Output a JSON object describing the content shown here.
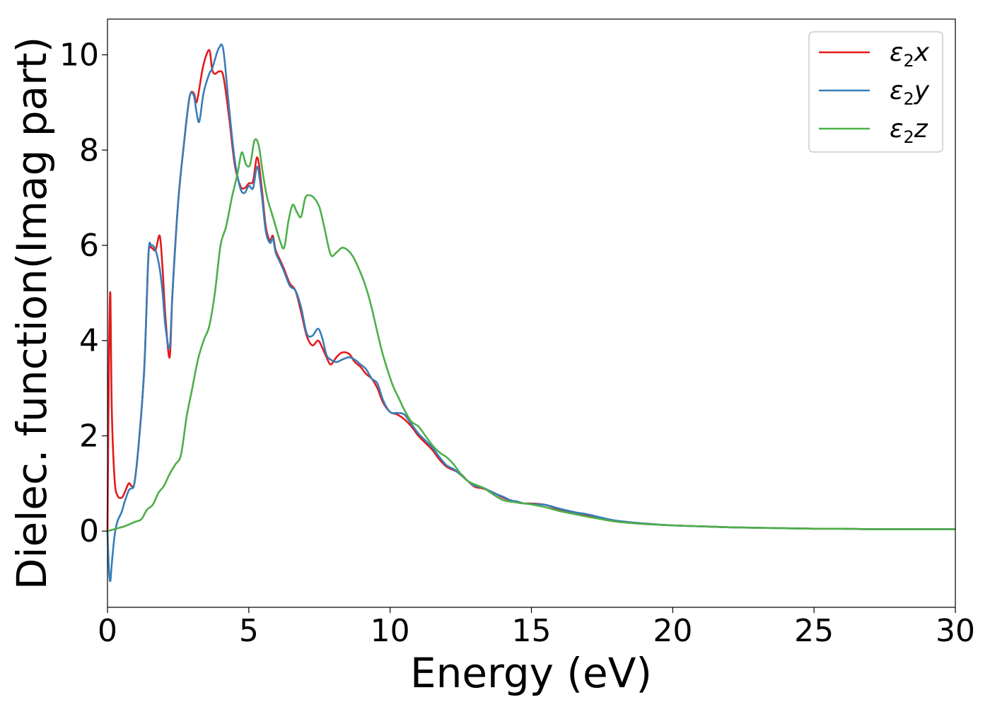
{
  "chart_data": {
    "type": "line",
    "title": "",
    "xlabel": "Energy (eV)",
    "ylabel": "Dielec. function(Imag part)",
    "xlim": [
      0,
      30
    ],
    "ylim": [
      -1.6,
      10.75
    ],
    "xticks": [
      0,
      5,
      10,
      15,
      20,
      25,
      30
    ],
    "yticks": [
      0,
      2,
      4,
      6,
      8,
      10
    ],
    "grid": false,
    "legend_position": "top-right",
    "series": [
      {
        "name": "ε₂x",
        "legend_symbol": "ε",
        "legend_sub": "2",
        "legend_var": "x",
        "color": "#e41a1c",
        "x": [
          0,
          0.05,
          0.1,
          0.15,
          0.25,
          0.35,
          0.5,
          0.6,
          0.75,
          0.85,
          0.95,
          1.1,
          1.3,
          1.45,
          1.55,
          1.7,
          1.85,
          1.95,
          2.05,
          2.2,
          2.3,
          2.5,
          2.7,
          2.9,
          3.05,
          3.15,
          3.25,
          3.4,
          3.6,
          3.7,
          3.8,
          3.95,
          4.1,
          4.3,
          4.5,
          4.7,
          4.85,
          5.0,
          5.15,
          5.3,
          5.45,
          5.6,
          5.75,
          5.85,
          5.95,
          6.1,
          6.25,
          6.45,
          6.65,
          6.85,
          7.05,
          7.25,
          7.45,
          7.6,
          7.75,
          7.9,
          8.1,
          8.3,
          8.55,
          8.75,
          8.95,
          9.15,
          9.35,
          9.55,
          9.75,
          10.0,
          10.25,
          10.5,
          10.75,
          11.0,
          11.25,
          11.5,
          11.75,
          12.0,
          12.25,
          12.5,
          12.75,
          13.0,
          13.25,
          13.5,
          13.75,
          14.0,
          14.25,
          14.5,
          14.75,
          15.0,
          15.5,
          16.0,
          16.5,
          17.0,
          17.5,
          18.0,
          19.0,
          20.0,
          21.0,
          22.0,
          23.0,
          24.0,
          25.0,
          26.0,
          27.0,
          28.0,
          29.0,
          30.0
        ],
        "y": [
          0,
          3.5,
          5.0,
          2.6,
          1.1,
          0.75,
          0.7,
          0.8,
          1.0,
          0.95,
          1.0,
          1.8,
          3.4,
          5.8,
          5.95,
          5.9,
          6.2,
          5.5,
          4.5,
          3.65,
          5.0,
          6.9,
          8.1,
          9.1,
          9.2,
          9.0,
          9.3,
          9.8,
          10.1,
          9.7,
          9.6,
          9.65,
          9.55,
          8.7,
          7.7,
          7.25,
          7.2,
          7.3,
          7.35,
          7.85,
          7.25,
          6.4,
          6.1,
          6.2,
          5.9,
          5.7,
          5.5,
          5.2,
          5.05,
          4.6,
          4.1,
          3.9,
          4.0,
          3.85,
          3.65,
          3.5,
          3.65,
          3.75,
          3.72,
          3.55,
          3.45,
          3.3,
          3.2,
          3.0,
          2.7,
          2.5,
          2.45,
          2.35,
          2.2,
          2.0,
          1.85,
          1.7,
          1.5,
          1.35,
          1.28,
          1.2,
          1.05,
          0.93,
          0.9,
          0.85,
          0.78,
          0.7,
          0.65,
          0.6,
          0.58,
          0.58,
          0.55,
          0.45,
          0.4,
          0.33,
          0.25,
          0.2,
          0.15,
          0.12,
          0.1,
          0.08,
          0.07,
          0.06,
          0.05,
          0.05,
          0.04,
          0.04,
          0.04,
          0.04
        ]
      },
      {
        "name": "ε₂y",
        "legend_symbol": "ε",
        "legend_sub": "2",
        "legend_var": "y",
        "color": "#377eb8",
        "x": [
          0,
          0.05,
          0.1,
          0.15,
          0.25,
          0.35,
          0.5,
          0.6,
          0.75,
          0.85,
          0.95,
          1.1,
          1.3,
          1.45,
          1.55,
          1.7,
          1.85,
          1.95,
          2.05,
          2.2,
          2.3,
          2.5,
          2.7,
          2.9,
          3.05,
          3.15,
          3.25,
          3.4,
          3.6,
          3.7,
          3.8,
          3.95,
          4.1,
          4.3,
          4.5,
          4.7,
          4.85,
          5.0,
          5.15,
          5.3,
          5.45,
          5.6,
          5.75,
          5.85,
          5.95,
          6.1,
          6.25,
          6.45,
          6.65,
          6.85,
          7.05,
          7.25,
          7.45,
          7.6,
          7.75,
          7.9,
          8.1,
          8.3,
          8.55,
          8.75,
          8.95,
          9.15,
          9.35,
          9.55,
          9.75,
          10.0,
          10.25,
          10.5,
          10.75,
          11.0,
          11.25,
          11.5,
          11.75,
          12.0,
          12.25,
          12.5,
          12.75,
          13.0,
          13.25,
          13.5,
          13.75,
          14.0,
          14.25,
          14.5,
          14.75,
          15.0,
          15.5,
          16.0,
          16.5,
          17.0,
          17.5,
          18.0,
          19.0,
          20.0,
          21.0,
          22.0,
          23.0,
          24.0,
          25.0,
          26.0,
          27.0,
          28.0,
          29.0,
          30.0
        ],
        "y": [
          0,
          -0.8,
          -1.05,
          -0.7,
          -0.1,
          0.2,
          0.4,
          0.6,
          0.85,
          0.9,
          1.0,
          1.8,
          3.4,
          5.8,
          6.0,
          5.9,
          5.5,
          5.0,
          4.3,
          3.85,
          5.0,
          6.9,
          8.1,
          9.1,
          9.15,
          8.8,
          8.6,
          9.2,
          9.6,
          9.7,
          9.9,
          10.15,
          10.1,
          8.9,
          7.8,
          7.2,
          7.1,
          7.25,
          7.2,
          7.65,
          7.1,
          6.3,
          6.05,
          6.15,
          5.85,
          5.65,
          5.45,
          5.15,
          5.05,
          4.7,
          4.15,
          4.1,
          4.25,
          4.05,
          3.7,
          3.6,
          3.55,
          3.6,
          3.65,
          3.6,
          3.5,
          3.4,
          3.2,
          3.1,
          2.75,
          2.5,
          2.48,
          2.45,
          2.25,
          2.05,
          1.9,
          1.75,
          1.55,
          1.38,
          1.3,
          1.18,
          1.05,
          0.95,
          0.92,
          0.85,
          0.78,
          0.72,
          0.65,
          0.62,
          0.58,
          0.57,
          0.55,
          0.47,
          0.4,
          0.35,
          0.28,
          0.22,
          0.16,
          0.12,
          0.1,
          0.08,
          0.07,
          0.06,
          0.05,
          0.05,
          0.04,
          0.04,
          0.04,
          0.04
        ]
      },
      {
        "name": "ε₂z",
        "legend_symbol": "ε",
        "legend_sub": "2",
        "legend_var": "z",
        "color": "#4daf4a",
        "x": [
          0,
          0.3,
          0.6,
          0.8,
          1.0,
          1.2,
          1.4,
          1.6,
          1.8,
          2.0,
          2.2,
          2.4,
          2.6,
          2.8,
          3.0,
          3.2,
          3.4,
          3.6,
          3.8,
          4.0,
          4.2,
          4.4,
          4.6,
          4.75,
          4.9,
          5.05,
          5.2,
          5.35,
          5.5,
          5.65,
          5.8,
          5.95,
          6.1,
          6.25,
          6.4,
          6.55,
          6.7,
          6.85,
          7.0,
          7.15,
          7.3,
          7.5,
          7.7,
          7.9,
          8.1,
          8.3,
          8.5,
          8.7,
          8.9,
          9.1,
          9.3,
          9.5,
          9.7,
          9.9,
          10.1,
          10.3,
          10.5,
          10.75,
          11.0,
          11.25,
          11.5,
          11.75,
          12.0,
          12.25,
          12.5,
          12.75,
          13.0,
          13.25,
          13.5,
          13.75,
          14.0,
          14.25,
          14.5,
          14.75,
          15.0,
          15.5,
          16.0,
          16.5,
          17.0,
          17.5,
          18.0,
          19.0,
          20.0,
          21.0,
          22.0,
          23.0,
          24.0,
          25.0,
          26.0,
          27.0,
          28.0,
          29.0,
          30.0
        ],
        "y": [
          0,
          0.05,
          0.1,
          0.15,
          0.2,
          0.25,
          0.45,
          0.55,
          0.8,
          0.95,
          1.2,
          1.4,
          1.6,
          2.4,
          3.0,
          3.6,
          4.0,
          4.3,
          5.0,
          6.0,
          6.4,
          7.0,
          7.5,
          7.95,
          7.7,
          7.7,
          8.2,
          8.1,
          7.5,
          7.0,
          6.7,
          6.4,
          6.1,
          5.95,
          6.5,
          6.85,
          6.7,
          6.6,
          7.0,
          7.05,
          7.0,
          6.8,
          6.3,
          5.8,
          5.85,
          5.95,
          5.9,
          5.75,
          5.5,
          5.2,
          4.8,
          4.3,
          3.8,
          3.4,
          3.05,
          2.8,
          2.55,
          2.3,
          2.2,
          2.0,
          1.8,
          1.65,
          1.55,
          1.4,
          1.2,
          1.05,
          0.98,
          0.92,
          0.83,
          0.73,
          0.65,
          0.62,
          0.6,
          0.58,
          0.56,
          0.5,
          0.42,
          0.36,
          0.3,
          0.25,
          0.2,
          0.15,
          0.12,
          0.1,
          0.08,
          0.07,
          0.06,
          0.05,
          0.05,
          0.04,
          0.04,
          0.04,
          0.04
        ]
      }
    ]
  }
}
